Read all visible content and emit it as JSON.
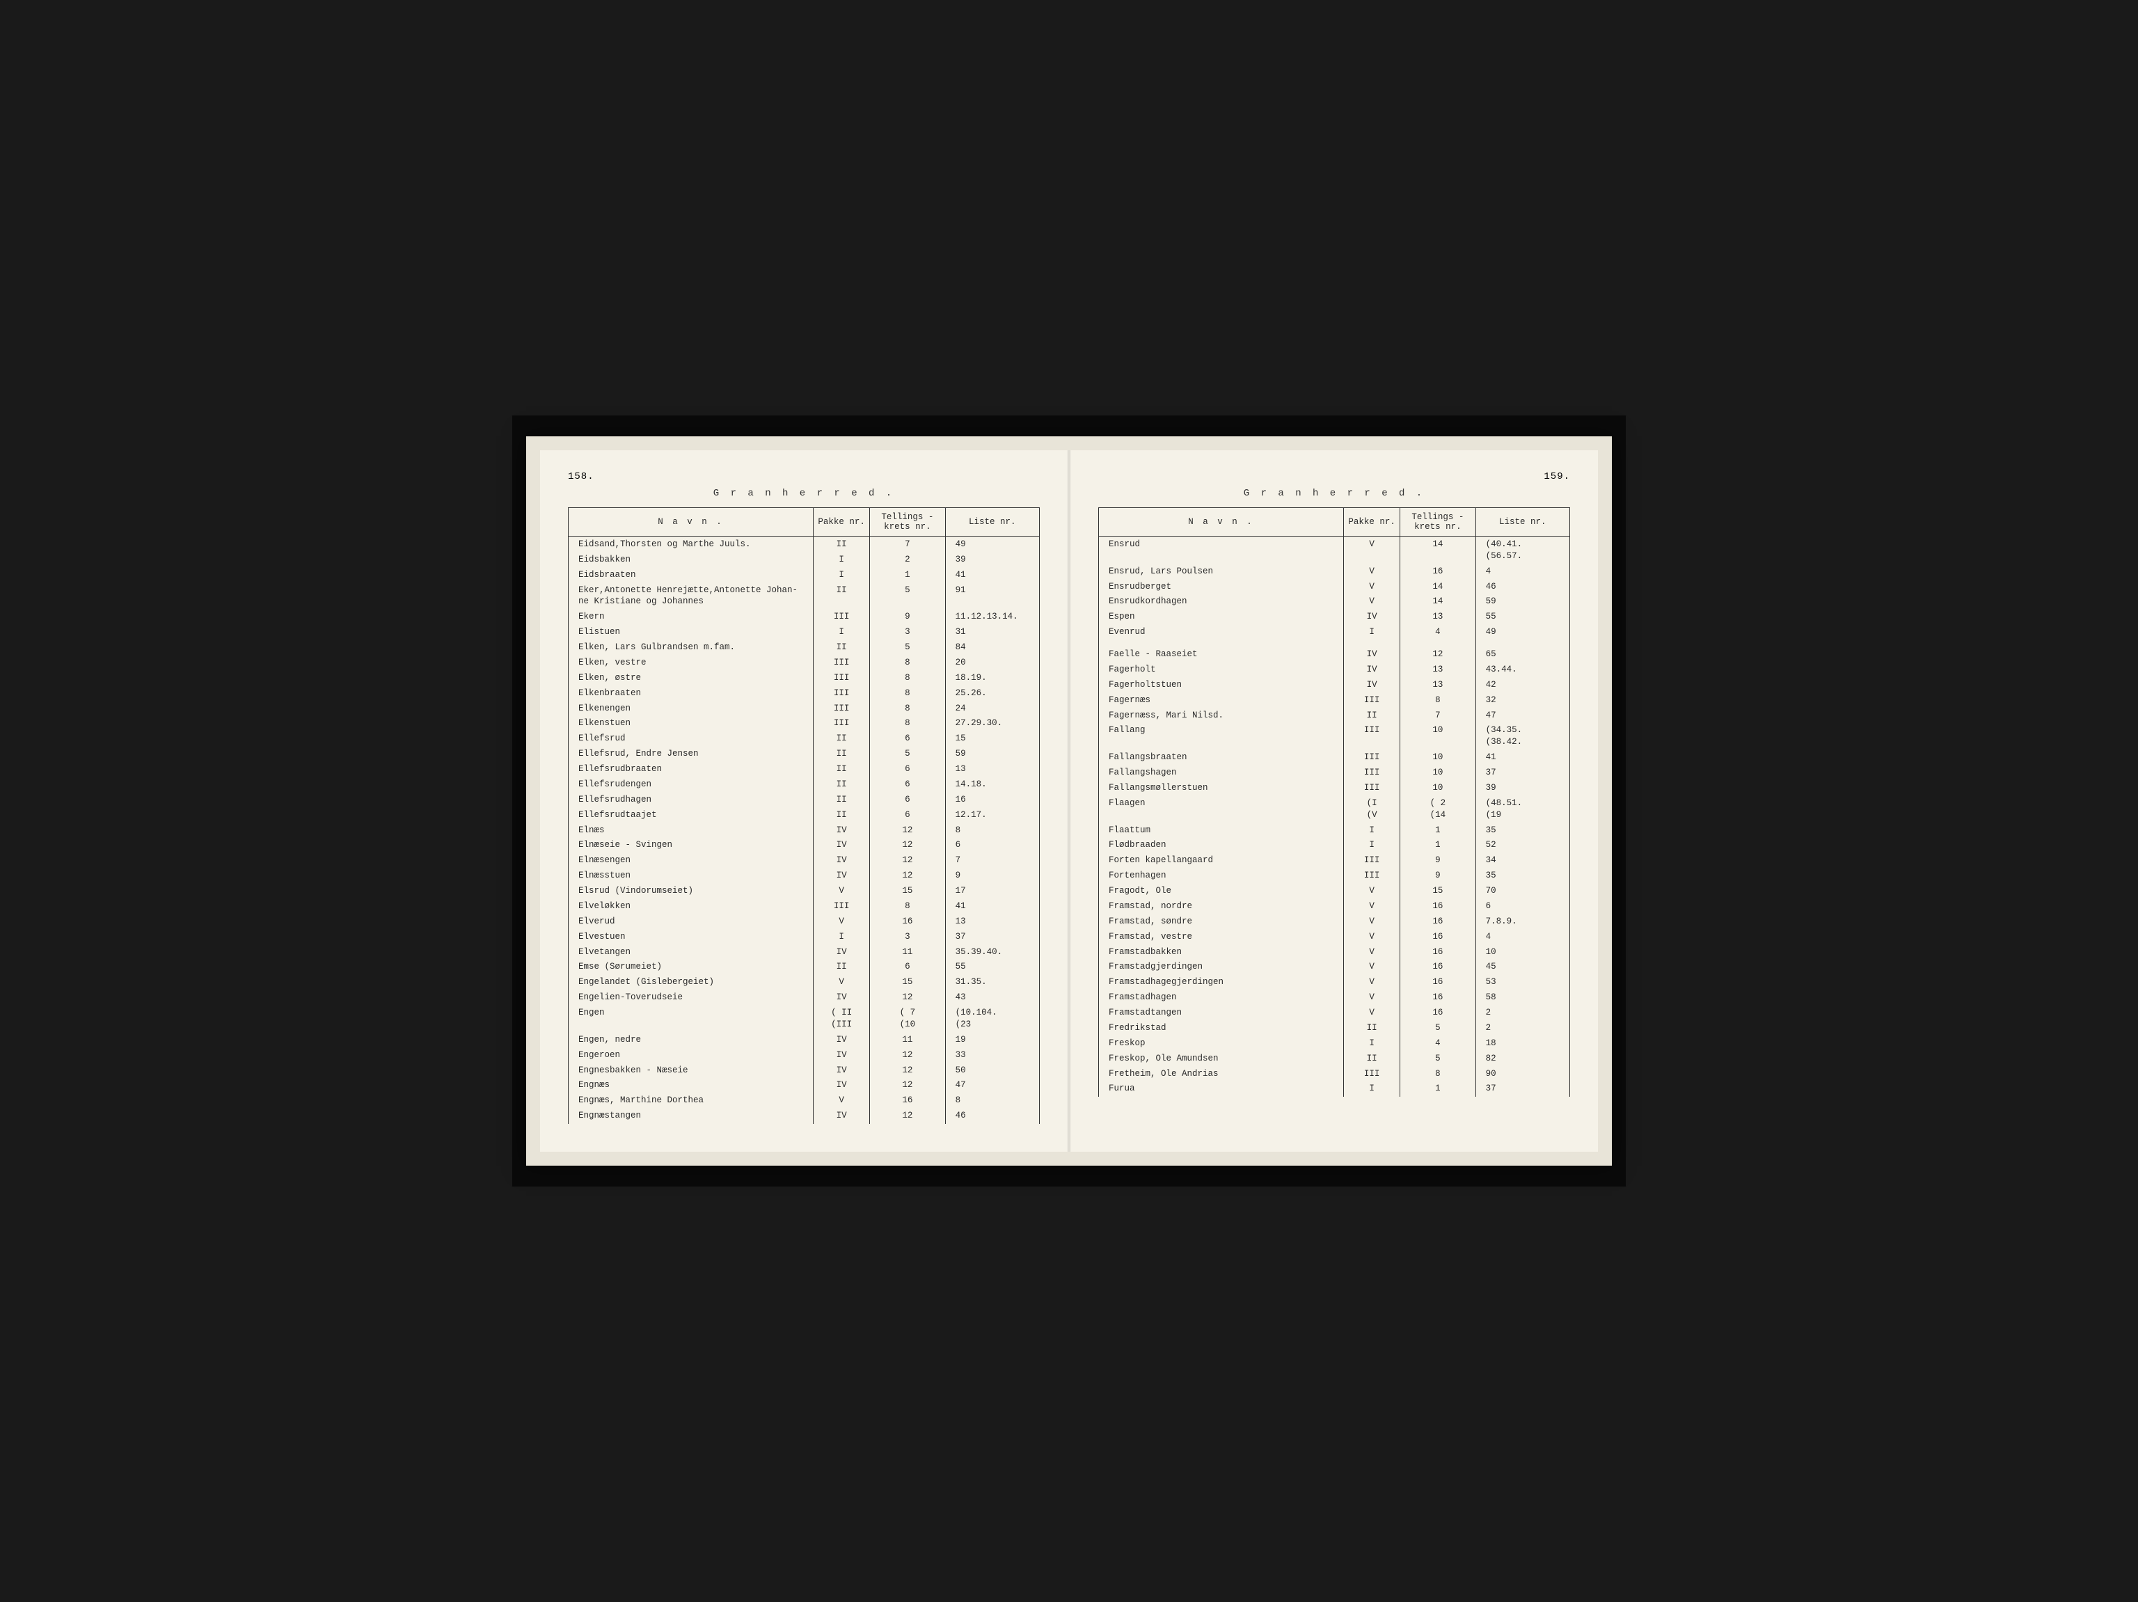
{
  "document": {
    "heading": "G r a n   h e r r e d .",
    "columns": {
      "name": "N a v n .",
      "pakke": "Pakke\nnr.",
      "krets": "Tellings -\nkrets nr.",
      "liste": "Liste\nnr."
    },
    "left_page": {
      "number": "158.",
      "rows": [
        {
          "name": "Eidsand,Thorsten og Marthe Juuls.",
          "pakke": "II",
          "krets": "7",
          "liste": "49"
        },
        {
          "name": "Eidsbakken",
          "pakke": "I",
          "krets": "2",
          "liste": "39"
        },
        {
          "name": "Eidsbraaten",
          "pakke": "I",
          "krets": "1",
          "liste": "41"
        },
        {
          "name": "Eker,Antonette Henrejætte,Antonette Johan-\n  ne Kristiane og Johannes",
          "pakke": "II",
          "krets": "5",
          "liste": "91"
        },
        {
          "name": "Ekern",
          "pakke": "III",
          "krets": "9",
          "liste": "11.12.13.14."
        },
        {
          "name": "Elistuen",
          "pakke": "I",
          "krets": "3",
          "liste": "31"
        },
        {
          "name": "Elken, Lars Gulbrandsen m.fam.",
          "pakke": "II",
          "krets": "5",
          "liste": "84"
        },
        {
          "name": "Elken, vestre",
          "pakke": "III",
          "krets": "8",
          "liste": "20"
        },
        {
          "name": "Elken, østre",
          "pakke": "III",
          "krets": "8",
          "liste": "18.19."
        },
        {
          "name": "Elkenbraaten",
          "pakke": "III",
          "krets": "8",
          "liste": "25.26."
        },
        {
          "name": "Elkenengen",
          "pakke": "III",
          "krets": "8",
          "liste": "24"
        },
        {
          "name": "Elkenstuen",
          "pakke": "III",
          "krets": "8",
          "liste": "27.29.30."
        },
        {
          "name": "Ellefsrud",
          "pakke": "II",
          "krets": "6",
          "liste": "15"
        },
        {
          "name": "Ellefsrud, Endre Jensen",
          "pakke": "II",
          "krets": "5",
          "liste": "59"
        },
        {
          "name": "Ellefsrudbraaten",
          "pakke": "II",
          "krets": "6",
          "liste": "13"
        },
        {
          "name": "Ellefsrudengen",
          "pakke": "II",
          "krets": "6",
          "liste": "14.18."
        },
        {
          "name": "Ellefsrudhagen",
          "pakke": "II",
          "krets": "6",
          "liste": "16"
        },
        {
          "name": "Ellefsrudtaajet",
          "pakke": "II",
          "krets": "6",
          "liste": "12.17."
        },
        {
          "name": "Elnæs",
          "pakke": "IV",
          "krets": "12",
          "liste": "8"
        },
        {
          "name": "Elnæseie - Svingen",
          "pakke": "IV",
          "krets": "12",
          "liste": "6"
        },
        {
          "name": "Elnæsengen",
          "pakke": "IV",
          "krets": "12",
          "liste": "7"
        },
        {
          "name": "Elnæsstuen",
          "pakke": "IV",
          "krets": "12",
          "liste": "9"
        },
        {
          "name": "Elsrud (Vindorumseiet)",
          "pakke": "V",
          "krets": "15",
          "liste": "17"
        },
        {
          "name": "Elveløkken",
          "pakke": "III",
          "krets": "8",
          "liste": "41"
        },
        {
          "name": "Elverud",
          "pakke": "V",
          "krets": "16",
          "liste": "13"
        },
        {
          "name": "Elvestuen",
          "pakke": "I",
          "krets": "3",
          "liste": "37"
        },
        {
          "name": "Elvetangen",
          "pakke": "IV",
          "krets": "11",
          "liste": "35.39.40."
        },
        {
          "name": "Emse (Sørumeiet)",
          "pakke": "II",
          "krets": "6",
          "liste": "55"
        },
        {
          "name": "Engelandet (Gislebergeiet)",
          "pakke": "V",
          "krets": "15",
          "liste": "31.35."
        },
        {
          "name": "Engelien-Toverudseie",
          "pakke": "IV",
          "krets": "12",
          "liste": "43"
        },
        {
          "name": "Engen",
          "pakke": "( II\n(III",
          "krets": "( 7\n(10",
          "liste": "(10.104.\n(23"
        },
        {
          "name": "Engen, nedre",
          "pakke": "IV",
          "krets": "11",
          "liste": "19"
        },
        {
          "name": "Engeroen",
          "pakke": "IV",
          "krets": "12",
          "liste": "33"
        },
        {
          "name": "Engnesbakken - Næseie",
          "pakke": "IV",
          "krets": "12",
          "liste": "50"
        },
        {
          "name": "Engnæs",
          "pakke": "IV",
          "krets": "12",
          "liste": "47"
        },
        {
          "name": "Engnæs, Marthine Dorthea",
          "pakke": "V",
          "krets": "16",
          "liste": "8"
        },
        {
          "name": "Engnæstangen",
          "pakke": "IV",
          "krets": "12",
          "liste": "46"
        }
      ]
    },
    "right_page": {
      "number": "159.",
      "rows": [
        {
          "name": "Ensrud",
          "pakke": "V",
          "krets": "14",
          "liste": "(40.41.\n(56.57."
        },
        {
          "name": "Ensrud, Lars Poulsen",
          "pakke": "V",
          "krets": "16",
          "liste": "4"
        },
        {
          "name": "Ensrudberget",
          "pakke": "V",
          "krets": "14",
          "liste": "46"
        },
        {
          "name": "Ensrudkordhagen",
          "pakke": "V",
          "krets": "14",
          "liste": "59"
        },
        {
          "name": "Espen",
          "pakke": "IV",
          "krets": "13",
          "liste": "55"
        },
        {
          "name": "Evenrud",
          "pakke": "I",
          "krets": "4",
          "liste": "49"
        },
        {
          "spacer": true
        },
        {
          "name": "Faelle - Raaseiet",
          "pakke": "IV",
          "krets": "12",
          "liste": "65"
        },
        {
          "name": "Fagerholt",
          "pakke": "IV",
          "krets": "13",
          "liste": "43.44."
        },
        {
          "name": "Fagerholtstuen",
          "pakke": "IV",
          "krets": "13",
          "liste": "42"
        },
        {
          "name": "Fagernæs",
          "pakke": "III",
          "krets": "8",
          "liste": "32"
        },
        {
          "name": "Fagernæss, Mari Nilsd.",
          "pakke": "II",
          "krets": "7",
          "liste": "47"
        },
        {
          "name": "Fallang",
          "pakke": "III",
          "krets": "10",
          "liste": "(34.35.\n(38.42."
        },
        {
          "name": "Fallangsbraaten",
          "pakke": "III",
          "krets": "10",
          "liste": "41"
        },
        {
          "name": "Fallangshagen",
          "pakke": "III",
          "krets": "10",
          "liste": "37"
        },
        {
          "name": "Fallangsmøllerstuen",
          "pakke": "III",
          "krets": "10",
          "liste": "39"
        },
        {
          "name": "Flaagen",
          "pakke": "(I\n(V",
          "krets": "( 2\n(14",
          "liste": "(48.51.\n(19"
        },
        {
          "name": "Flaattum",
          "pakke": "I",
          "krets": "1",
          "liste": "35"
        },
        {
          "name": "Flødbraaden",
          "pakke": "I",
          "krets": "1",
          "liste": "52"
        },
        {
          "name": "Forten kapellangaard",
          "pakke": "III",
          "krets": "9",
          "liste": "34"
        },
        {
          "name": "Fortenhagen",
          "pakke": "III",
          "krets": "9",
          "liste": "35"
        },
        {
          "name": "Fragodt, Ole",
          "pakke": "V",
          "krets": "15",
          "liste": "70"
        },
        {
          "name": "Framstad, nordre",
          "pakke": "V",
          "krets": "16",
          "liste": "6"
        },
        {
          "name": "Framstad, søndre",
          "pakke": "V",
          "krets": "16",
          "liste": "7.8.9."
        },
        {
          "name": "Framstad, vestre",
          "pakke": "V",
          "krets": "16",
          "liste": "4"
        },
        {
          "name": "Framstadbakken",
          "pakke": "V",
          "krets": "16",
          "liste": "10"
        },
        {
          "name": "Framstadgjerdingen",
          "pakke": "V",
          "krets": "16",
          "liste": "45"
        },
        {
          "name": "Framstadhagegjerdingen",
          "pakke": "V",
          "krets": "16",
          "liste": "53"
        },
        {
          "name": "Framstadhagen",
          "pakke": "V",
          "krets": "16",
          "liste": "58"
        },
        {
          "name": "Framstadtangen",
          "pakke": "V",
          "krets": "16",
          "liste": "2"
        },
        {
          "name": "Fredrikstad",
          "pakke": "II",
          "krets": "5",
          "liste": "2"
        },
        {
          "name": "Freskop",
          "pakke": "I",
          "krets": "4",
          "liste": "18"
        },
        {
          "name": "Freskop, Ole Amundsen",
          "pakke": "II",
          "krets": "5",
          "liste": "82"
        },
        {
          "name": "Fretheim, Ole Andrias",
          "pakke": "III",
          "krets": "8",
          "liste": "90"
        },
        {
          "name": "Furua",
          "pakke": "I",
          "krets": "1",
          "liste": "37"
        }
      ]
    }
  }
}
